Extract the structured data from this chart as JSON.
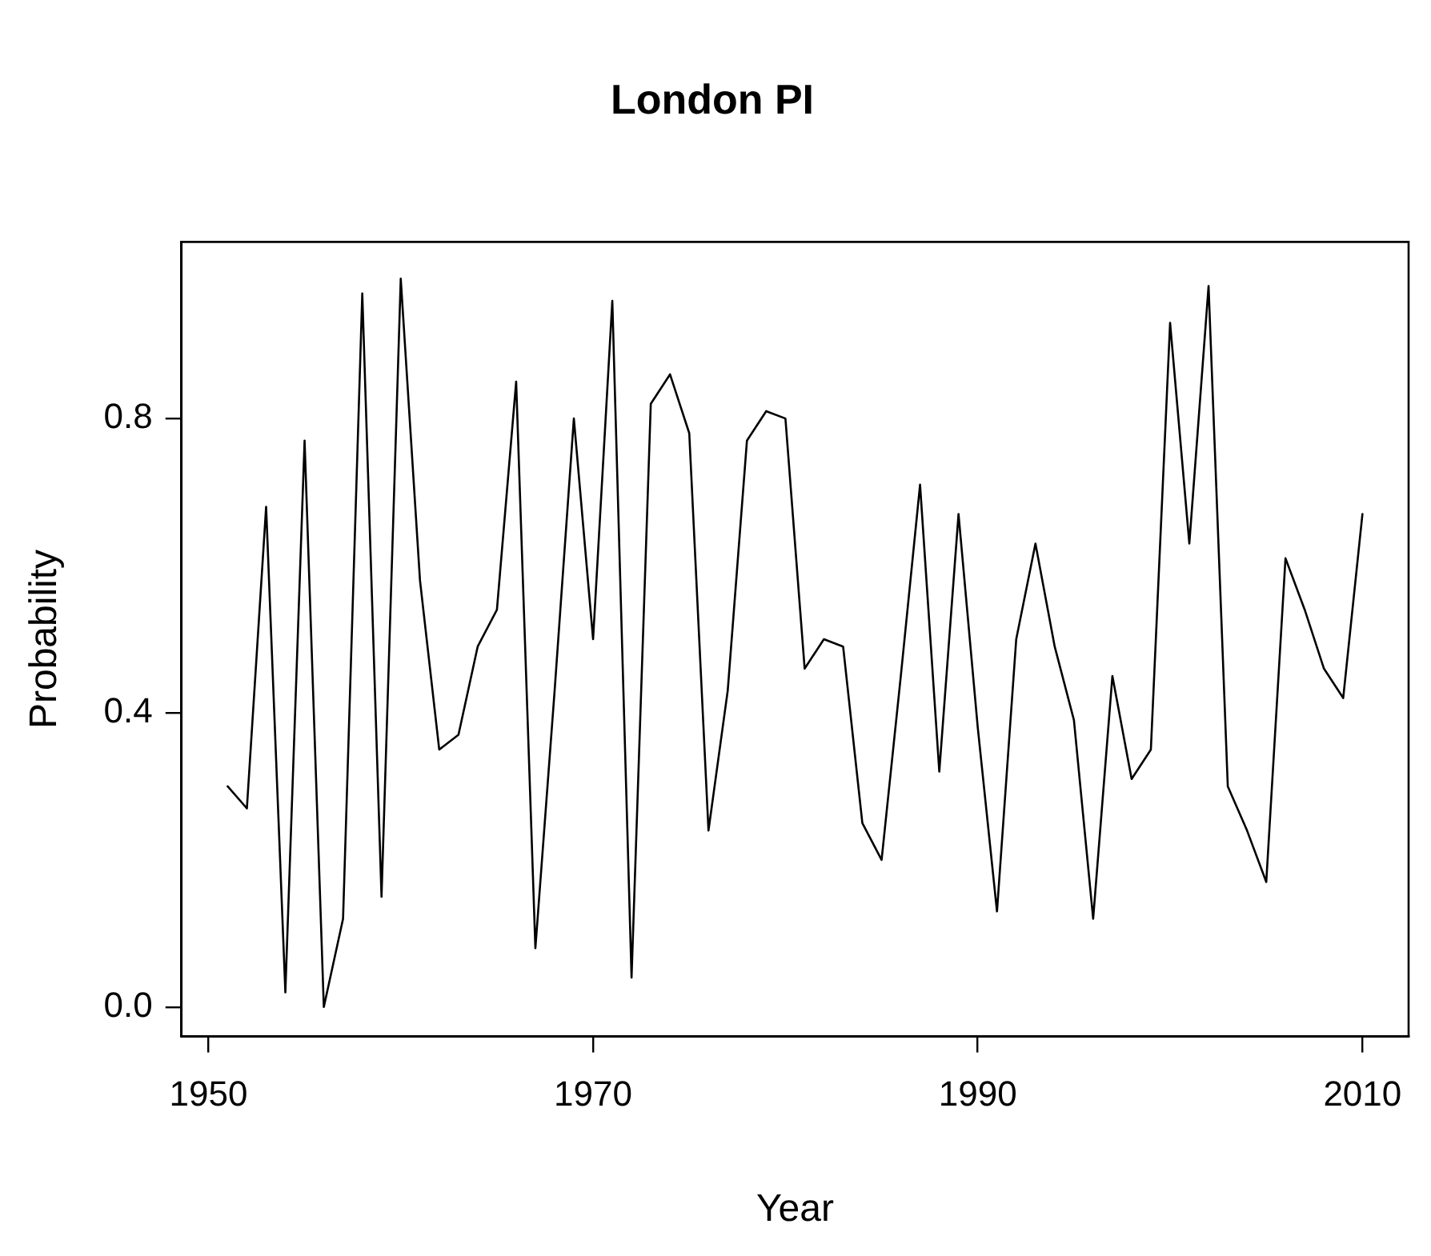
{
  "chart_data": {
    "type": "line",
    "title": "London PI",
    "xlabel": "Year",
    "ylabel": "Probability",
    "x": [
      1951,
      1952,
      1953,
      1954,
      1955,
      1956,
      1957,
      1958,
      1959,
      1960,
      1961,
      1962,
      1963,
      1964,
      1965,
      1966,
      1967,
      1968,
      1969,
      1970,
      1971,
      1972,
      1973,
      1974,
      1975,
      1976,
      1977,
      1978,
      1979,
      1980,
      1981,
      1982,
      1983,
      1984,
      1985,
      1986,
      1987,
      1988,
      1989,
      1990,
      1991,
      1992,
      1993,
      1994,
      1995,
      1996,
      1997,
      1998,
      1999,
      2000,
      2001,
      2002,
      2003,
      2004,
      2005,
      2006,
      2007,
      2008,
      2009,
      2010
    ],
    "series": [
      {
        "color": "#000000",
        "values": [
          0.3,
          0.27,
          0.68,
          0.02,
          0.77,
          0.0,
          0.12,
          0.97,
          0.15,
          0.99,
          0.58,
          0.35,
          0.37,
          0.49,
          0.54,
          0.85,
          0.08,
          0.43,
          0.8,
          0.5,
          0.96,
          0.04,
          0.82,
          0.86,
          0.78,
          0.24,
          0.43,
          0.77,
          0.81,
          0.8,
          0.46,
          0.5,
          0.49,
          0.25,
          0.2,
          0.45,
          0.71,
          0.32,
          0.67,
          0.38,
          0.13,
          0.5,
          0.63,
          0.49,
          0.39,
          0.12,
          0.45,
          0.31,
          0.35,
          0.93,
          0.63,
          0.98,
          0.3,
          0.24,
          0.17,
          0.61,
          0.54,
          0.46,
          0.42,
          0.67
        ]
      }
    ],
    "xlim": [
      1948.6,
      2012.4
    ],
    "xticks": [
      1950,
      1970,
      1990,
      2010
    ],
    "ylim": [
      -0.04,
      1.04
    ],
    "yticks": [
      {
        "value": 0,
        "label": "0.0"
      },
      {
        "value": 0.4,
        "label": "0.4"
      },
      {
        "value": 0.8,
        "label": "0.8"
      }
    ],
    "grid": false,
    "legend": false,
    "marker": "none",
    "line_style": "solid"
  }
}
